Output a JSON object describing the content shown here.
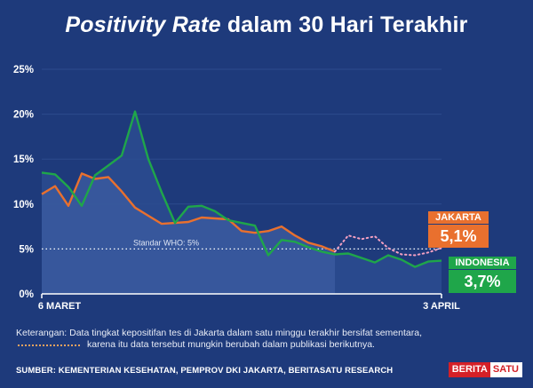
{
  "header": {
    "title_highlight": "Positivity Rate",
    "title_rest": " dalam 30 Hari Terakhir"
  },
  "chart_data": {
    "type": "line",
    "title": "Positivity Rate dalam 30 Hari Terakhir",
    "ylim": [
      0,
      25
    ],
    "y_ticks": [
      "0%",
      "5%",
      "10%",
      "15%",
      "20%",
      "25%"
    ],
    "x_first_label": "6 MARET",
    "x_last_label": "3 APRIL",
    "reference_line": {
      "value": 5,
      "label": "Standar WHO: 5%"
    },
    "series": [
      {
        "name": "JAKARTA",
        "color": "#e9702e",
        "values": [
          11.1,
          12.0,
          9.8,
          13.4,
          12.8,
          13.0,
          11.4,
          9.6,
          8.7,
          7.8,
          7.9,
          8.0,
          8.5,
          8.4,
          8.3,
          7.0,
          6.8,
          7.0,
          7.5,
          6.5,
          5.7,
          5.3,
          4.7
        ],
        "provisional": [
          4.7,
          6.5,
          6.1,
          6.4,
          5.1,
          4.4,
          4.3,
          4.6,
          5.1
        ]
      },
      {
        "name": "INDONESIA",
        "color": "#1fa64a",
        "values": [
          13.5,
          13.3,
          11.9,
          9.8,
          13.2,
          14.3,
          15.4,
          20.3,
          15.0,
          11.3,
          7.9,
          9.7,
          9.8,
          9.2,
          8.2,
          7.9,
          7.6,
          4.3,
          6.0,
          5.8,
          5.2,
          4.7,
          4.4,
          4.5,
          4.0,
          3.5,
          4.3,
          3.8,
          3.0,
          3.6,
          3.7
        ]
      }
    ],
    "callouts": {
      "jakarta": {
        "label": "JAKARTA",
        "value": "5,1%"
      },
      "indonesia": {
        "label": "INDONESIA",
        "value": "3,7%"
      }
    }
  },
  "footer": {
    "note_line1": "Keterangan: Data tingkat kepositifan tes di Jakarta dalam satu minggu terakhir bersifat sementara,",
    "note_line2": "karena itu data tersebut mungkin berubah dalam publikasi berikutnya.",
    "source": "SUMBER: KEMENTERIAN KESEHATAN, PEMPROV DKI JAKARTA, BERITASATU RESEARCH",
    "brand_part1": "BERITA",
    "brand_part2": "SATU"
  }
}
